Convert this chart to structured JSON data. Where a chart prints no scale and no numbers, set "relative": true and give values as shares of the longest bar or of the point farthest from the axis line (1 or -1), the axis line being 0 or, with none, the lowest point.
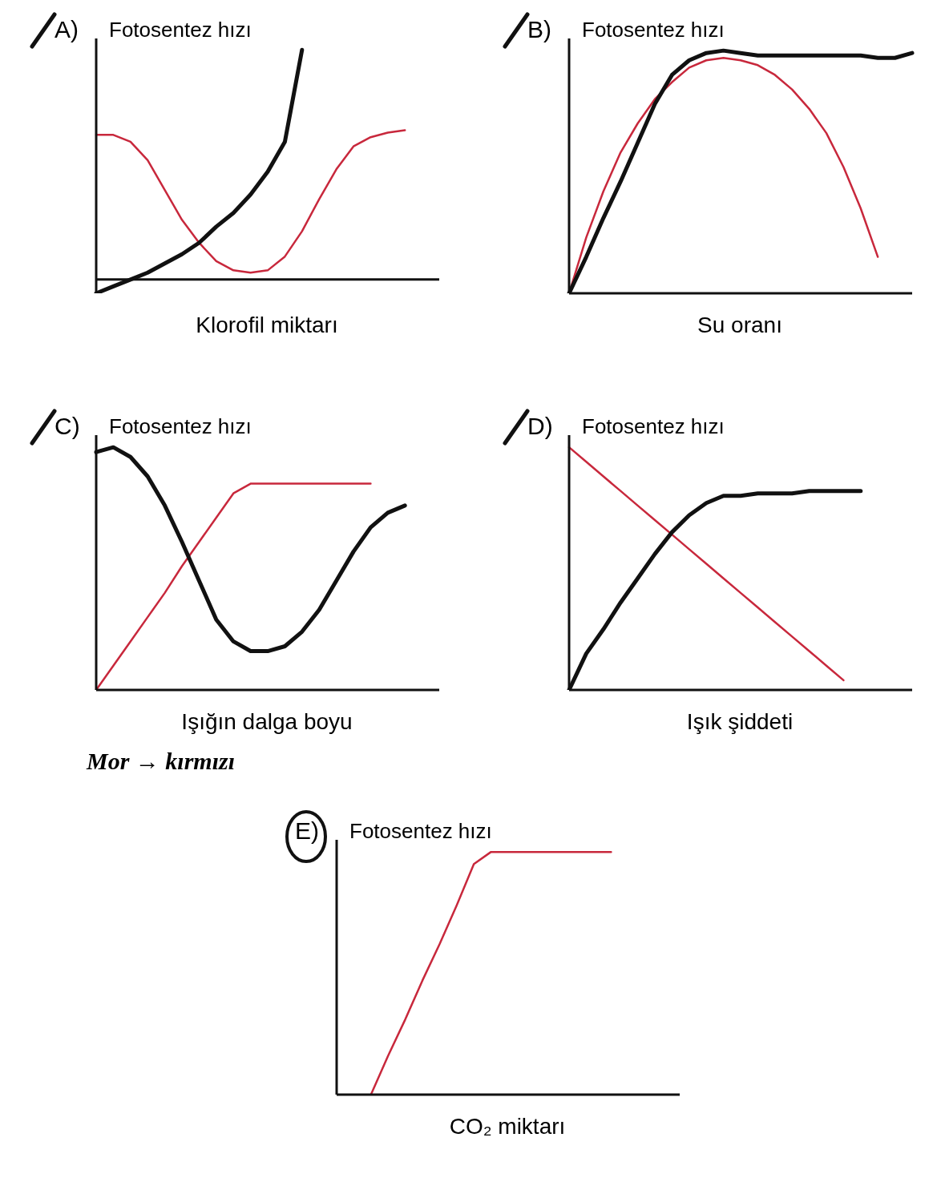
{
  "chart_data": [
    {
      "type": "line",
      "title": "A)",
      "ylabel": "Fotosentez hızı",
      "xlabel": "Klorofil miktarı",
      "relative": true,
      "legend": false,
      "grid": false,
      "marker": "none",
      "categories": [
        null,
        null,
        null,
        null,
        null,
        null,
        null,
        null,
        null,
        null,
        null,
        null,
        null,
        null,
        null,
        null,
        null,
        null,
        null,
        null,
        null
      ],
      "series": [
        {
          "color": "#c8283c",
          "values": [
            0.63,
            0.63,
            0.6,
            0.52,
            0.39,
            0.26,
            0.16,
            0.08,
            0.04,
            0.03,
            0.04,
            0.1,
            0.21,
            0.35,
            0.48,
            0.58,
            0.62,
            0.64,
            0.65,
            null,
            null
          ]
        },
        {
          "color": "#111111",
          "values": [
            -0.06,
            -0.03,
            0,
            0.03,
            0.07,
            0.11,
            0.16,
            0.23,
            0.29,
            0.37,
            0.47,
            0.6,
            1,
            null,
            null,
            null,
            null,
            null,
            null,
            null,
            null
          ]
        }
      ]
    },
    {
      "type": "line",
      "title": "B)",
      "ylabel": "Fotosentez hızı",
      "xlabel": "Su oranı",
      "relative": true,
      "legend": false,
      "grid": false,
      "marker": "none",
      "categories": [
        null,
        null,
        null,
        null,
        null,
        null,
        null,
        null,
        null,
        null,
        null,
        null,
        null,
        null,
        null,
        null,
        null,
        null,
        null,
        null,
        null
      ],
      "series": [
        {
          "color": "#c8283c",
          "values": [
            0,
            0.23,
            0.42,
            0.58,
            0.7,
            0.8,
            0.87,
            0.93,
            0.96,
            0.97,
            0.96,
            0.94,
            0.9,
            0.84,
            0.76,
            0.66,
            0.52,
            0.35,
            0.15,
            null,
            null
          ]
        },
        {
          "color": "#111111",
          "values": [
            0,
            0.15,
            0.31,
            0.46,
            0.62,
            0.78,
            0.9,
            0.96,
            0.99,
            1,
            0.99,
            0.98,
            0.98,
            0.98,
            0.98,
            0.98,
            0.98,
            0.98,
            0.97,
            0.97,
            0.99
          ]
        }
      ]
    },
    {
      "type": "line",
      "title": "C)",
      "ylabel": "Fotosentez hızı",
      "xlabel": "Işığın dalga boyu",
      "annotations": [
        "Mor → kırmızı"
      ],
      "relative": true,
      "legend": false,
      "grid": false,
      "marker": "none",
      "categories": [
        null,
        null,
        null,
        null,
        null,
        null,
        null,
        null,
        null,
        null,
        null,
        null,
        null,
        null,
        null,
        null,
        null,
        null,
        null,
        null,
        null
      ],
      "series": [
        {
          "color": "#c8283c",
          "values": [
            0,
            0.1,
            0.2,
            0.3,
            0.4,
            0.51,
            0.61,
            0.71,
            0.81,
            0.85,
            0.85,
            0.85,
            0.85,
            0.85,
            0.85,
            0.85,
            0.85,
            null,
            null,
            null,
            null
          ]
        },
        {
          "color": "#111111",
          "values": [
            0.98,
            1,
            0.96,
            0.88,
            0.76,
            0.61,
            0.45,
            0.29,
            0.2,
            0.16,
            0.16,
            0.18,
            0.24,
            0.33,
            0.45,
            0.57,
            0.67,
            0.73,
            0.76,
            null,
            null
          ]
        }
      ]
    },
    {
      "type": "line",
      "title": "D)",
      "ylabel": "Fotosentez hızı",
      "xlabel": "Işık şiddeti",
      "relative": true,
      "legend": false,
      "grid": false,
      "marker": "none",
      "categories": [
        null,
        null,
        null,
        null,
        null,
        null,
        null,
        null,
        null,
        null,
        null,
        null,
        null,
        null,
        null,
        null,
        null,
        null,
        null,
        null,
        null
      ],
      "series": [
        {
          "color": "#c8283c",
          "values": [
            1,
            0.94,
            0.88,
            0.82,
            0.76,
            0.7,
            0.64,
            0.58,
            0.52,
            0.46,
            0.4,
            0.34,
            0.28,
            0.22,
            0.16,
            0.1,
            0.04,
            null,
            null,
            null,
            null
          ]
        },
        {
          "color": "#111111",
          "values": [
            0,
            0.15,
            0.25,
            0.36,
            0.46,
            0.56,
            0.65,
            0.72,
            0.77,
            0.8,
            0.8,
            0.81,
            0.81,
            0.81,
            0.82,
            0.82,
            0.82,
            0.82,
            null,
            null,
            null
          ]
        }
      ]
    },
    {
      "type": "line",
      "title": "E)",
      "ylabel": "Fotosentez hızı",
      "xlabel": "CO₂ miktarı",
      "relative": true,
      "legend": false,
      "grid": false,
      "marker": "none",
      "categories": [
        null,
        null,
        null,
        null,
        null,
        null,
        null,
        null,
        null,
        null,
        null,
        null,
        null,
        null,
        null,
        null,
        null,
        null,
        null,
        null,
        null
      ],
      "series": [
        {
          "color": "#c8283c",
          "values": [
            null,
            null,
            0,
            0.16,
            0.31,
            0.47,
            0.62,
            0.78,
            0.95,
            1,
            1,
            1,
            1,
            1,
            1,
            1,
            1,
            null,
            null,
            null,
            null
          ]
        }
      ]
    }
  ]
}
